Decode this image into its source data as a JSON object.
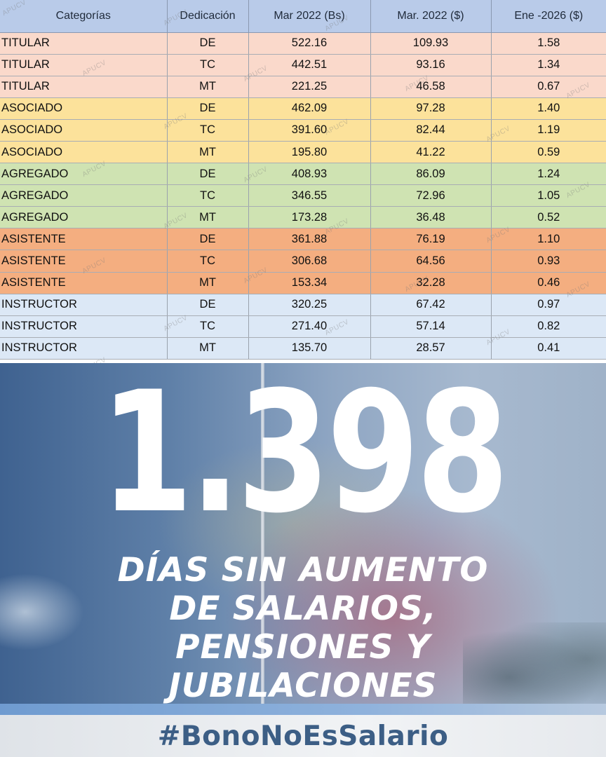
{
  "table": {
    "headers": [
      "Categorías",
      "Dedicación",
      "Mar 2022 (Bs)",
      "Mar. 2022 ($)",
      "Ene -2026 ($)"
    ],
    "rows": [
      {
        "group": "titular",
        "categoria": "TITULAR",
        "dedicacion": "DE",
        "bs": "522.16",
        "usd2022": "109.93",
        "usd2026": "1.58"
      },
      {
        "group": "titular",
        "categoria": "TITULAR",
        "dedicacion": "TC",
        "bs": "442.51",
        "usd2022": "93.16",
        "usd2026": "1.34"
      },
      {
        "group": "titular",
        "categoria": "TITULAR",
        "dedicacion": "MT",
        "bs": "221.25",
        "usd2022": "46.58",
        "usd2026": "0.67"
      },
      {
        "group": "asociado",
        "categoria": "ASOCIADO",
        "dedicacion": "DE",
        "bs": "462.09",
        "usd2022": "97.28",
        "usd2026": "1.40"
      },
      {
        "group": "asociado",
        "categoria": "ASOCIADO",
        "dedicacion": "TC",
        "bs": "391.60",
        "usd2022": "82.44",
        "usd2026": "1.19"
      },
      {
        "group": "asociado",
        "categoria": "ASOCIADO",
        "dedicacion": "MT",
        "bs": "195.80",
        "usd2022": "41.22",
        "usd2026": "0.59"
      },
      {
        "group": "agregado",
        "categoria": "AGREGADO",
        "dedicacion": "DE",
        "bs": "408.93",
        "usd2022": "86.09",
        "usd2026": "1.24"
      },
      {
        "group": "agregado",
        "categoria": "AGREGADO",
        "dedicacion": "TC",
        "bs": "346.55",
        "usd2022": "72.96",
        "usd2026": "1.05"
      },
      {
        "group": "agregado",
        "categoria": "AGREGADO",
        "dedicacion": "MT",
        "bs": "173.28",
        "usd2022": "36.48",
        "usd2026": "0.52"
      },
      {
        "group": "asistente",
        "categoria": "ASISTENTE",
        "dedicacion": "DE",
        "bs": "361.88",
        "usd2022": "76.19",
        "usd2026": "1.10"
      },
      {
        "group": "asistente",
        "categoria": "ASISTENTE",
        "dedicacion": "TC",
        "bs": "306.68",
        "usd2022": "64.56",
        "usd2026": "0.93"
      },
      {
        "group": "asistente",
        "categoria": "ASISTENTE",
        "dedicacion": "MT",
        "bs": "153.34",
        "usd2022": "32.28",
        "usd2026": "0.46"
      },
      {
        "group": "instructor",
        "categoria": "INSTRUCTOR",
        "dedicacion": "DE",
        "bs": "320.25",
        "usd2022": "67.42",
        "usd2026": "0.97"
      },
      {
        "group": "instructor",
        "categoria": "INSTRUCTOR",
        "dedicacion": "TC",
        "bs": "271.40",
        "usd2022": "57.14",
        "usd2026": "0.82"
      },
      {
        "group": "instructor",
        "categoria": "INSTRUCTOR",
        "dedicacion": "MT",
        "bs": "135.70",
        "usd2022": "28.57",
        "usd2026": "0.41"
      }
    ],
    "group_colors": {
      "titular": "#fad9cb",
      "asociado": "#fce29b",
      "agregado": "#cfe3b2",
      "asistente": "#f4ae80",
      "instructor": "#dce8f6"
    },
    "watermark": "APUCV"
  },
  "poster": {
    "big_number": "1.398",
    "headline_lines": [
      "DÍAS SIN AUMENTO",
      "DE SALARIOS,",
      "PENSIONES Y",
      "JUBILACIONES"
    ],
    "hashtag": "#BonoNoEsSalario",
    "text_color": "#ffffff",
    "hashtag_color": "#3c5e85"
  }
}
